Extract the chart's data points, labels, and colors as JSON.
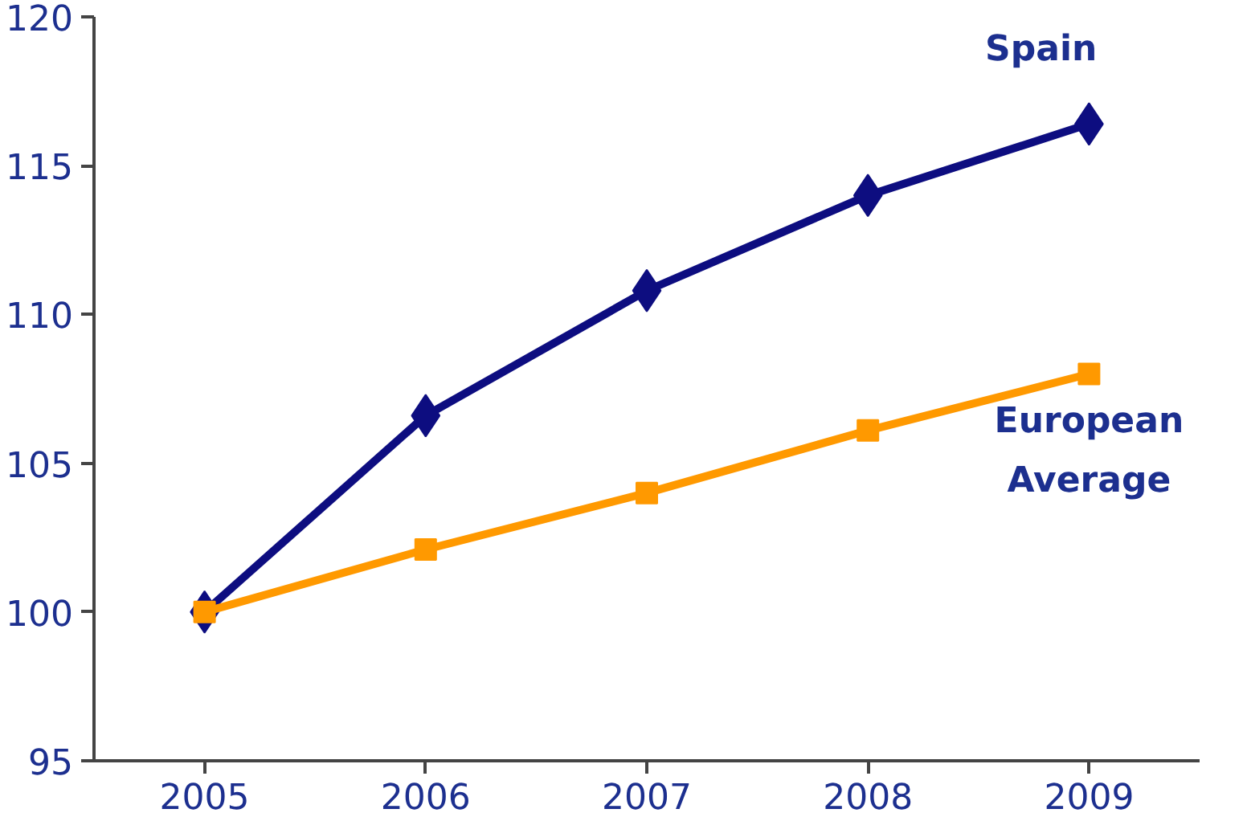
{
  "chart_data": {
    "type": "line",
    "categories": [
      "2005",
      "2006",
      "2007",
      "2008",
      "2009"
    ],
    "series": [
      {
        "name": "Spain",
        "color": "#0d0d80",
        "values": [
          100,
          106.6,
          110.8,
          114.0,
          116.4
        ],
        "marker": "diamond"
      },
      {
        "name": "European Average",
        "color": "#ff9900",
        "values": [
          100,
          102.1,
          104.0,
          106.1,
          108.0
        ],
        "marker": "square"
      }
    ],
    "ylim": [
      95,
      120
    ],
    "yticks": [
      95,
      100,
      105,
      110,
      115,
      120
    ],
    "grid": false,
    "legend": false
  }
}
